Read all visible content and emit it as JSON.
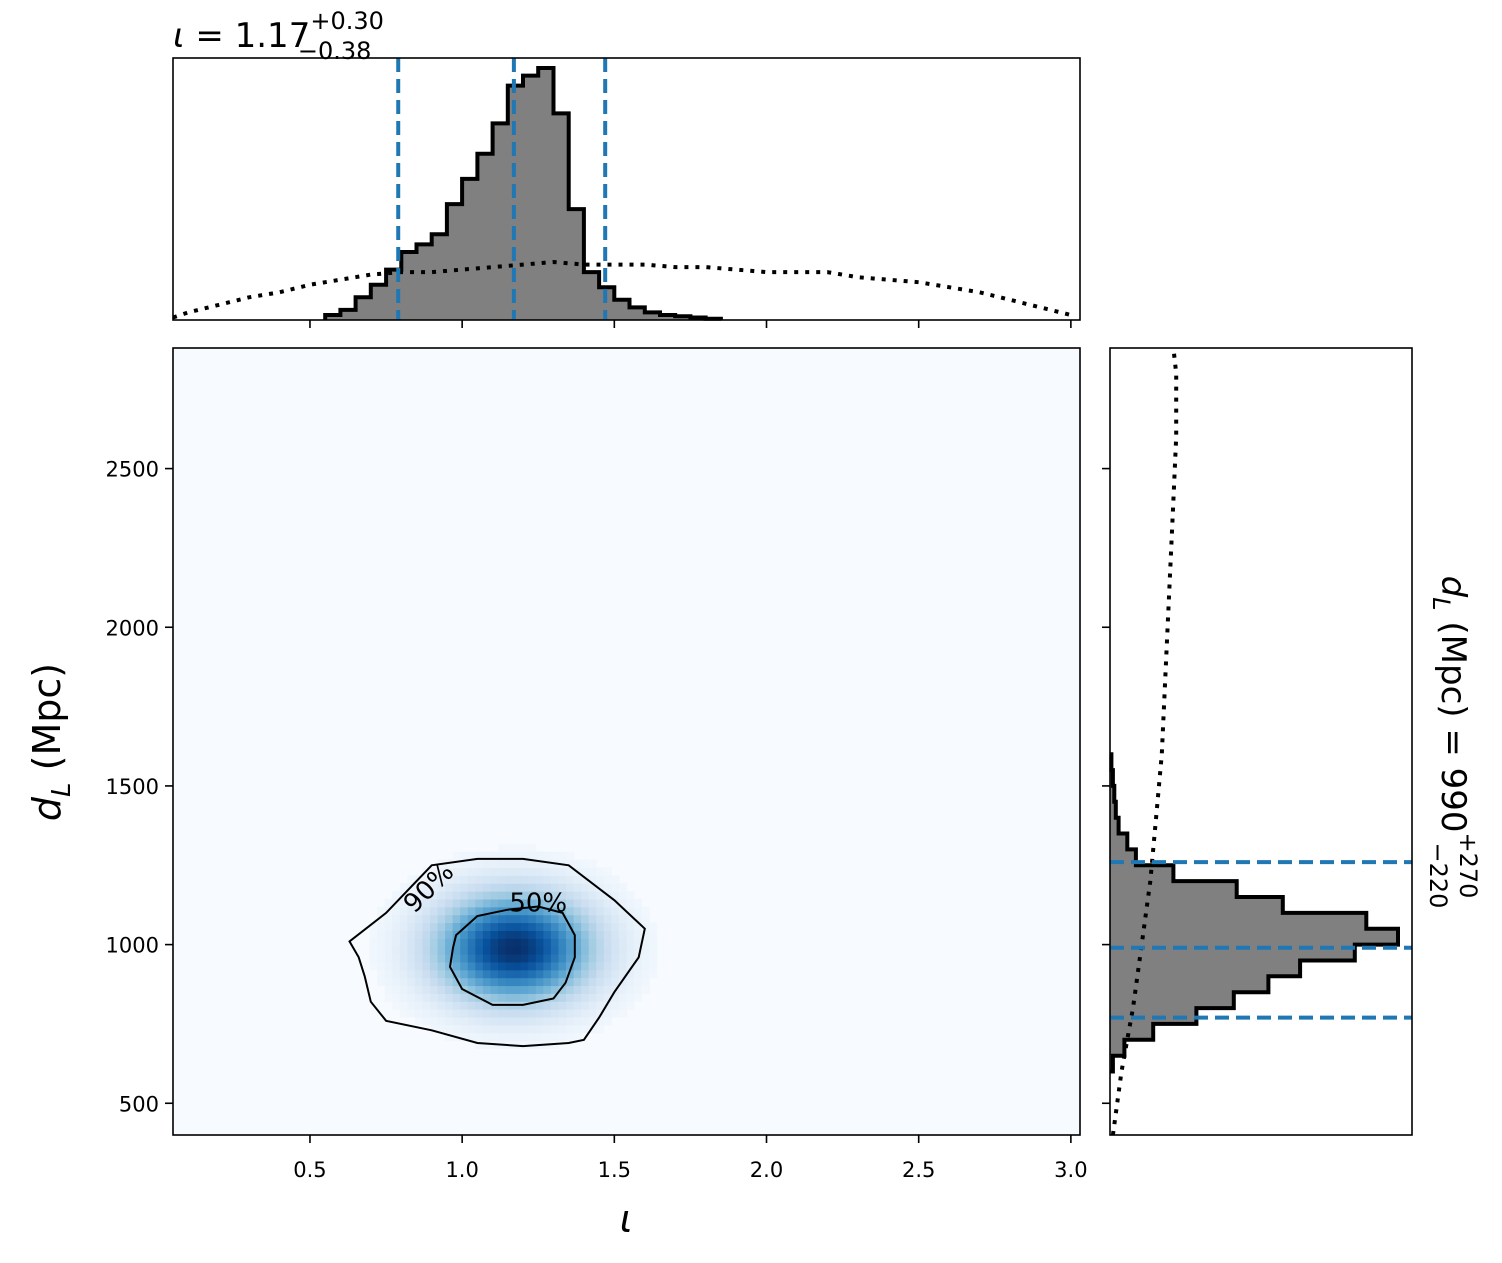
{
  "chart_data": [
    {
      "type": "histogram",
      "panel": "iota-marginal",
      "title": {
        "symbol": "ι",
        "eq": " = 1.17",
        "sup": "+0.30",
        "sub": "−0.38"
      },
      "xlim": [
        0.05,
        3.03
      ],
      "quantile_lines": [
        0.79,
        1.17,
        1.47
      ],
      "quantile_color": "#1f77b4",
      "posterior": {
        "bin_edges_start": 0.55,
        "bin_width": 0.05,
        "heights": [
          0.02,
          0.04,
          0.09,
          0.14,
          0.2,
          0.27,
          0.3,
          0.34,
          0.46,
          0.56,
          0.66,
          0.78,
          0.93,
          0.97,
          1.0,
          0.82,
          0.44,
          0.19,
          0.13,
          0.08,
          0.05,
          0.03,
          0.02,
          0.015,
          0.01,
          0.005
        ]
      },
      "prior": {
        "x": [
          0.05,
          0.1,
          0.2,
          0.3,
          0.4,
          0.5,
          0.6,
          0.7,
          0.8,
          0.9,
          1.0,
          1.1,
          1.2,
          1.3,
          1.4,
          1.5,
          1.6,
          1.7,
          1.8,
          1.9,
          2.0,
          2.1,
          2.2,
          2.3,
          2.4,
          2.5,
          2.6,
          2.7,
          2.8,
          2.9,
          3.0
        ],
        "y": [
          0.01,
          0.03,
          0.06,
          0.09,
          0.11,
          0.14,
          0.16,
          0.18,
          0.19,
          0.19,
          0.2,
          0.21,
          0.22,
          0.23,
          0.22,
          0.22,
          0.22,
          0.21,
          0.21,
          0.2,
          0.19,
          0.19,
          0.19,
          0.17,
          0.16,
          0.15,
          0.13,
          0.11,
          0.08,
          0.05,
          0.02
        ]
      }
    },
    {
      "type": "heatmap",
      "panel": "joint-posterior",
      "xlabel": "ι",
      "ylabel": {
        "main": "d",
        "sub": "L",
        "rest": " (Mpc)"
      },
      "xlim": [
        0.05,
        3.03
      ],
      "ylim": [
        400,
        2880
      ],
      "xticks": [
        "0.5",
        "1.0",
        "1.5",
        "2.0",
        "2.5",
        "3.0"
      ],
      "yticks": [
        "500",
        "1000",
        "1500",
        "2000",
        "2500"
      ],
      "colormap": "Blues",
      "peak": {
        "x": 1.17,
        "y": 990
      },
      "spread": {
        "x": 0.18,
        "y": 120
      },
      "contours": [
        {
          "label": "50%",
          "x": [
            0.98,
            1.05,
            1.15,
            1.25,
            1.33,
            1.37,
            1.37,
            1.34,
            1.3,
            1.2,
            1.1,
            1.0,
            0.96,
            0.97,
            0.98
          ],
          "y": [
            1030,
            1090,
            1110,
            1120,
            1100,
            1030,
            960,
            880,
            830,
            810,
            810,
            860,
            930,
            990,
            1030
          ]
        },
        {
          "label": "90%",
          "x": [
            0.63,
            0.75,
            0.9,
            1.05,
            1.2,
            1.35,
            1.5,
            1.6,
            1.58,
            1.5,
            1.45,
            1.4,
            1.35,
            1.2,
            1.05,
            0.9,
            0.75,
            0.7,
            0.68,
            0.66,
            0.63
          ],
          "y": [
            1010,
            1100,
            1250,
            1270,
            1270,
            1250,
            1140,
            1050,
            960,
            850,
            770,
            700,
            690,
            680,
            690,
            730,
            760,
            820,
            900,
            960,
            1010
          ]
        }
      ]
    },
    {
      "type": "histogram",
      "panel": "distance-marginal",
      "orientation": "horizontal",
      "title": {
        "symbol": "d",
        "symbol_sub": "L",
        "eq": " (Mpc) = 990",
        "sup": "+270",
        "sub": "−220"
      },
      "ylim": [
        400,
        2880
      ],
      "quantile_lines": [
        770,
        990,
        1260
      ],
      "posterior": {
        "bin_edges_start": 600,
        "bin_width": 50,
        "heights": [
          0.01,
          0.05,
          0.15,
          0.3,
          0.43,
          0.55,
          0.66,
          0.85,
          1.0,
          0.89,
          0.6,
          0.44,
          0.22,
          0.09,
          0.06,
          0.03,
          0.02,
          0.015,
          0.01,
          0.005
        ]
      },
      "prior": {
        "y": [
          400,
          600,
          800,
          1000,
          1200,
          1400,
          1600,
          1800,
          2000,
          2200,
          2400,
          2600,
          2800,
          2880
        ],
        "x": [
          0.01,
          0.04,
          0.08,
          0.11,
          0.14,
          0.16,
          0.18,
          0.19,
          0.2,
          0.21,
          0.22,
          0.23,
          0.23,
          0.22
        ]
      }
    }
  ]
}
